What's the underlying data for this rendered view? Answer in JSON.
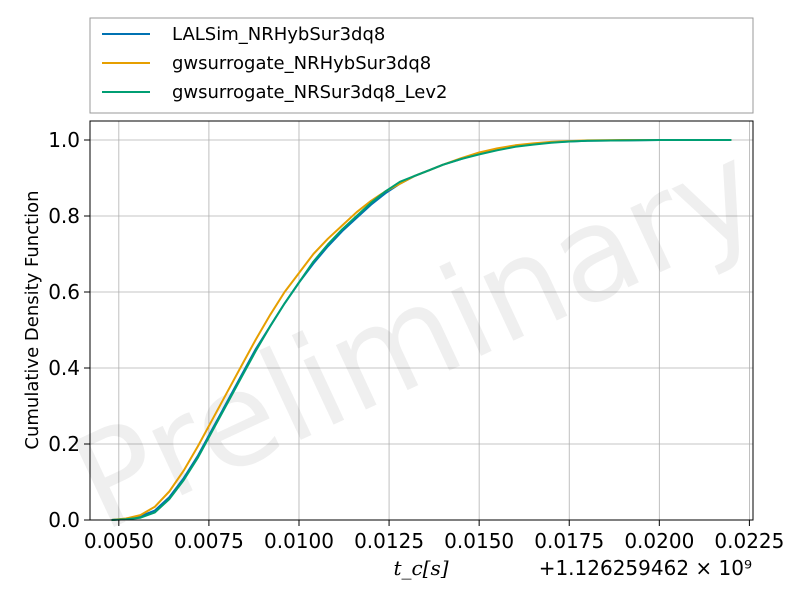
{
  "chart_data": {
    "type": "line",
    "title": "",
    "xlabel": "t_c[s]",
    "ylabel": "Cumulative Density Function",
    "x_offset_label": "+1.126259462 × 10⁹",
    "watermark": "Preliminary",
    "xlim": [
      0.0042,
      0.0226
    ],
    "ylim": [
      0.0,
      1.05
    ],
    "x_ticks": [
      0.005,
      0.0075,
      0.01,
      0.0125,
      0.015,
      0.0175,
      0.02,
      0.0225
    ],
    "x_tick_labels": [
      "0.0050",
      "0.0075",
      "0.0100",
      "0.0125",
      "0.0150",
      "0.0175",
      "0.0200",
      "0.0225"
    ],
    "y_ticks": [
      0.0,
      0.2,
      0.4,
      0.6,
      0.8,
      1.0
    ],
    "y_tick_labels": [
      "0.0",
      "0.2",
      "0.4",
      "0.6",
      "0.8",
      "1.0"
    ],
    "grid": true,
    "legend_position": "top-outside",
    "series": [
      {
        "name": "LALSim_NRHybSur3dq8",
        "color": "#0072B2",
        "x": [
          0.0048,
          0.0052,
          0.0056,
          0.006,
          0.0064,
          0.0068,
          0.0072,
          0.0076,
          0.008,
          0.0084,
          0.0088,
          0.0092,
          0.0096,
          0.01,
          0.0104,
          0.0108,
          0.0112,
          0.0116,
          0.012,
          0.0124,
          0.0128,
          0.0132,
          0.0136,
          0.014,
          0.0145,
          0.015,
          0.0155,
          0.016,
          0.0165,
          0.017,
          0.0175,
          0.018,
          0.019,
          0.02,
          0.021,
          0.022
        ],
        "y": [
          0.0,
          0.003,
          0.01,
          0.025,
          0.06,
          0.11,
          0.17,
          0.24,
          0.31,
          0.38,
          0.45,
          0.51,
          0.57,
          0.625,
          0.675,
          0.72,
          0.76,
          0.795,
          0.83,
          0.86,
          0.885,
          0.905,
          0.92,
          0.935,
          0.95,
          0.965,
          0.975,
          0.983,
          0.99,
          0.994,
          0.996,
          0.998,
          0.999,
          1.0,
          1.0,
          1.0
        ]
      },
      {
        "name": "gwsurrogate_NRHybSur3dq8",
        "color": "#E69F00",
        "x": [
          0.0048,
          0.0052,
          0.0056,
          0.006,
          0.0064,
          0.0068,
          0.0072,
          0.0076,
          0.008,
          0.0084,
          0.0088,
          0.0092,
          0.0096,
          0.01,
          0.0104,
          0.0108,
          0.0112,
          0.0116,
          0.012,
          0.0124,
          0.0128,
          0.0132,
          0.0136,
          0.014,
          0.0145,
          0.015,
          0.0155,
          0.016,
          0.0165,
          0.017,
          0.0175,
          0.018,
          0.019,
          0.02,
          0.021,
          0.022
        ],
        "y": [
          0.0,
          0.004,
          0.013,
          0.035,
          0.075,
          0.13,
          0.195,
          0.265,
          0.335,
          0.405,
          0.475,
          0.54,
          0.6,
          0.65,
          0.7,
          0.74,
          0.775,
          0.81,
          0.84,
          0.865,
          0.885,
          0.905,
          0.92,
          0.935,
          0.952,
          0.967,
          0.978,
          0.986,
          0.991,
          0.995,
          0.997,
          0.999,
          1.0,
          1.0,
          1.0,
          1.0
        ]
      },
      {
        "name": "gwsurrogate_NRSur3dq8_Lev2",
        "color": "#009E73",
        "x": [
          0.0048,
          0.0052,
          0.0056,
          0.006,
          0.0064,
          0.0068,
          0.0072,
          0.0076,
          0.008,
          0.0084,
          0.0088,
          0.0092,
          0.0096,
          0.01,
          0.0104,
          0.0108,
          0.0112,
          0.0116,
          0.012,
          0.0124,
          0.0128,
          0.0132,
          0.0136,
          0.014,
          0.0145,
          0.015,
          0.0155,
          0.016,
          0.0165,
          0.017,
          0.0175,
          0.018,
          0.019,
          0.02,
          0.021,
          0.022
        ],
        "y": [
          0.0,
          0.002,
          0.006,
          0.02,
          0.055,
          0.105,
          0.165,
          0.235,
          0.305,
          0.375,
          0.445,
          0.51,
          0.57,
          0.625,
          0.68,
          0.725,
          0.765,
          0.8,
          0.835,
          0.865,
          0.89,
          0.905,
          0.92,
          0.935,
          0.95,
          0.962,
          0.973,
          0.982,
          0.988,
          0.993,
          0.996,
          0.998,
          0.999,
          1.0,
          1.0,
          1.0
        ]
      }
    ]
  }
}
